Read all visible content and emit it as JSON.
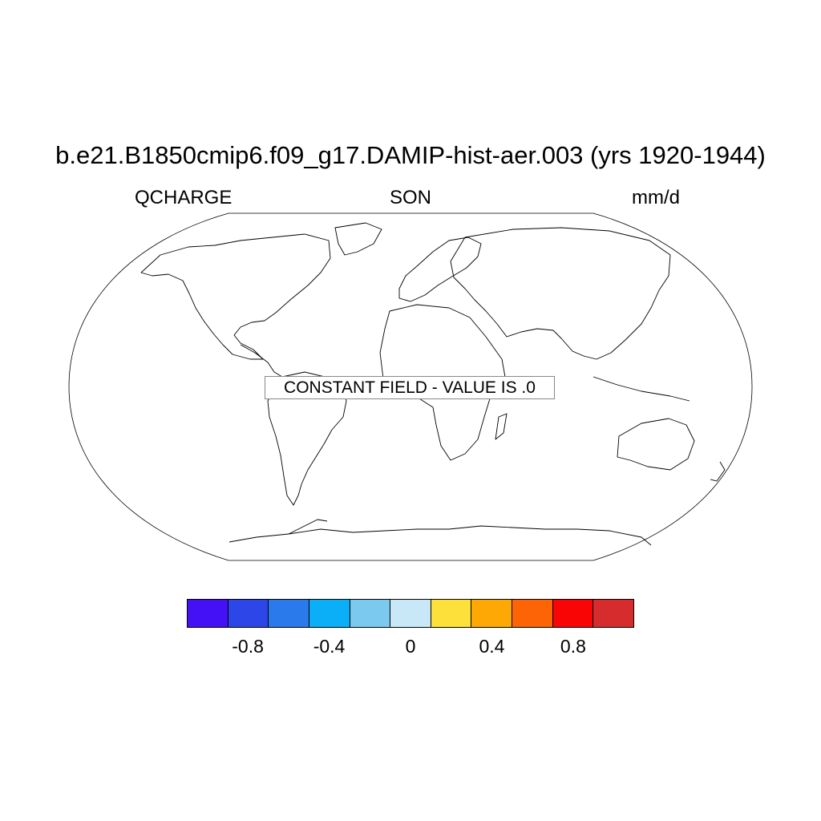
{
  "header": {
    "title": "b.e21.B1850cmip6.f09_g17.DAMIP-hist-aer.003 (yrs 1920-1944)",
    "variable": "QCHARGE",
    "season": "SON",
    "units": "mm/d"
  },
  "map": {
    "projection": "robinson",
    "notice": "CONSTANT FIELD - VALUE IS .0"
  },
  "colorbar": {
    "colors": [
      "#4410F5",
      "#2C46E8",
      "#2B7AEC",
      "#0AAFF7",
      "#7CC9F0",
      "#C8E8F8",
      "#FDE03A",
      "#FDA805",
      "#FD6405",
      "#FA0505",
      "#D72C2E"
    ],
    "tick_labels": [
      "-0.8",
      "-0.4",
      "0",
      "0.4",
      "0.8"
    ],
    "tick_values": [
      -0.8,
      -0.4,
      0,
      0.4,
      0.8
    ],
    "min": -1.1,
    "max": 1.1
  }
}
